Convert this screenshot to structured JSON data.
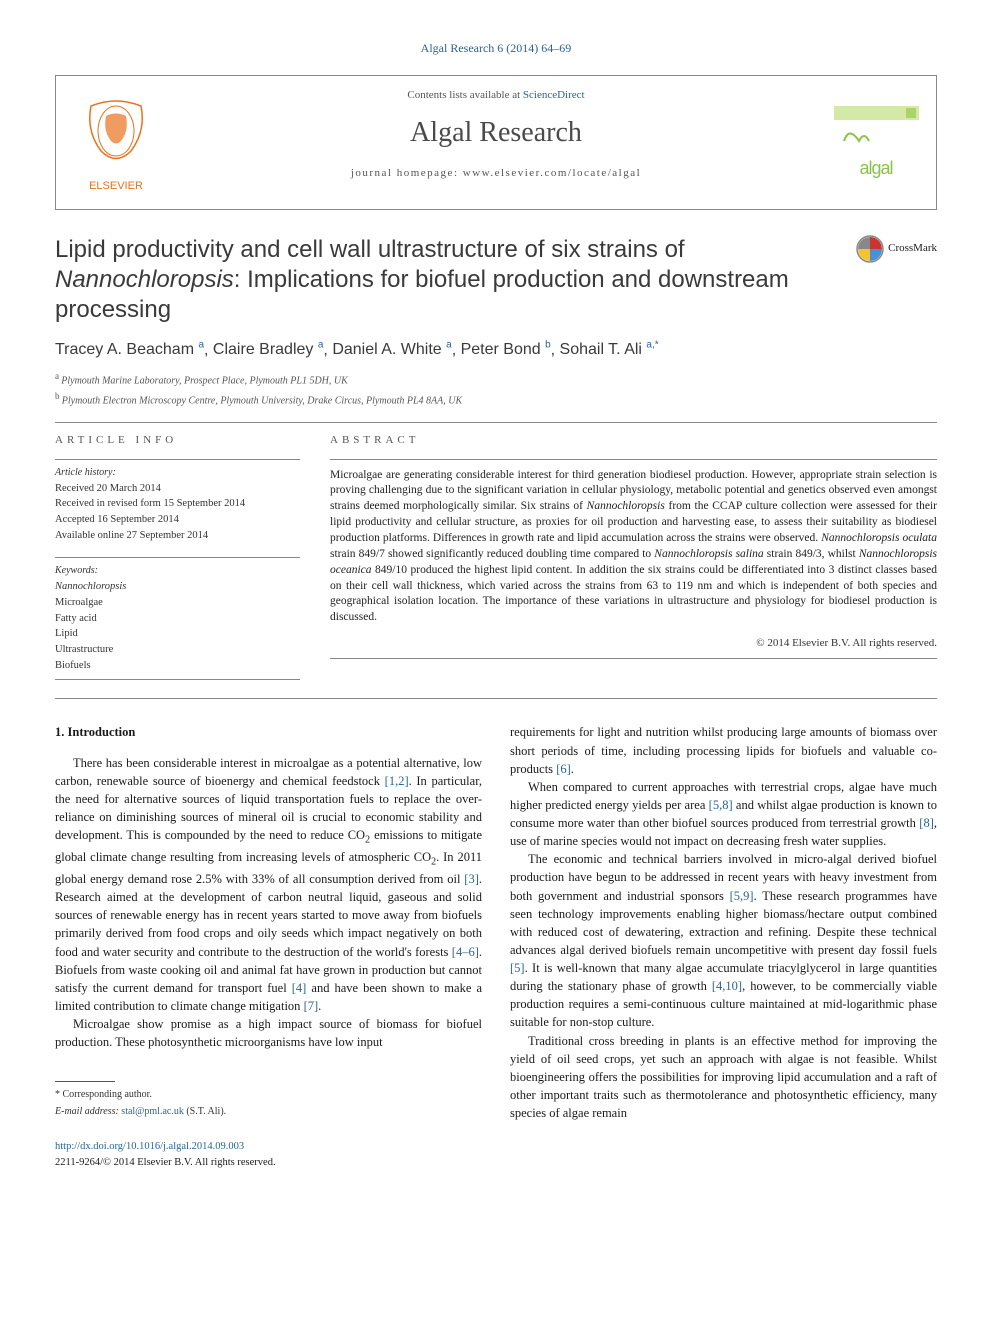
{
  "top_link": "Algal Research 6 (2014) 64–69",
  "header": {
    "contents_line_prefix": "Contents lists available at ",
    "contents_link": "ScienceDirect",
    "journal_name": "Algal Research",
    "homepage_prefix": "journal homepage: ",
    "homepage_url": "www.elsevier.com/locate/algal",
    "algal_brand": "algal"
  },
  "crossmark_label": "CrossMark",
  "title_pre": "Lipid productivity and cell wall ultrastructure of six strains of ",
  "title_em": "Nannochloropsis",
  "title_post": ": Implications for biofuel production and downstream processing",
  "authors": [
    {
      "name": "Tracey A. Beacham",
      "sup": "a"
    },
    {
      "name": "Claire Bradley",
      "sup": "a"
    },
    {
      "name": "Daniel A. White",
      "sup": "a"
    },
    {
      "name": "Peter Bond",
      "sup": "b"
    },
    {
      "name": "Sohail T. Ali",
      "sup": "a,*"
    }
  ],
  "affiliations": [
    {
      "sup": "a",
      "text": "Plymouth Marine Laboratory, Prospect Place, Plymouth PL1 5DH, UK"
    },
    {
      "sup": "b",
      "text": "Plymouth Electron Microscopy Centre, Plymouth University, Drake Circus, Plymouth PL4 8AA, UK"
    }
  ],
  "article_info": {
    "heading": "ARTICLE INFO",
    "history_label": "Article history:",
    "history": [
      "Received 20 March 2014",
      "Received in revised form 15 September 2014",
      "Accepted 16 September 2014",
      "Available online 27 September 2014"
    ],
    "keywords_label": "Keywords:",
    "keywords": [
      "Nannochloropsis",
      "Microalgae",
      "Fatty acid",
      "Lipid",
      "Ultrastructure",
      "Biofuels"
    ]
  },
  "abstract": {
    "heading": "ABSTRACT",
    "text_parts": [
      {
        "t": "Microalgae are generating considerable interest for third generation biodiesel production. However, appropriate strain selection is proving challenging due to the significant variation in cellular physiology, metabolic potential and genetics observed even amongst strains deemed morphologically similar. Six strains of "
      },
      {
        "em": "Nannochloropsis"
      },
      {
        "t": " from the CCAP culture collection were assessed for their lipid productivity and cellular structure, as proxies for oil production and harvesting ease, to assess their suitability as biodiesel production platforms. Differences in growth rate and lipid accumulation across the strains were observed. "
      },
      {
        "em": "Nannochloropsis oculata"
      },
      {
        "t": " strain 849/7 showed significantly reduced doubling time compared to "
      },
      {
        "em": "Nannochloropsis salina"
      },
      {
        "t": " strain 849/3, whilst "
      },
      {
        "em": "Nannochloropsis oceanica"
      },
      {
        "t": " 849/10 produced the highest lipid content. In addition the six strains could be differentiated into 3 distinct classes based on their cell wall thickness, which varied across the strains from 63 to 119 nm and which is independent of both species and geographical isolation location. The importance of these variations in ultrastructure and physiology for biodiesel production is discussed."
      }
    ],
    "copyright": "© 2014 Elsevier B.V. All rights reserved."
  },
  "section_heading": "1. Introduction",
  "col1": {
    "p1": {
      "pre": "There has been considerable interest in microalgae as a potential alternative, low carbon, renewable source of bioenergy and chemical feedstock ",
      "r1": "[1,2]",
      "mid1": ". In particular, the need for alternative sources of liquid transportation fuels to replace the over-reliance on diminishing sources of mineral oil is crucial to economic stability and development. This is compounded by the need to reduce CO",
      "sub1": "2",
      "mid2": " emissions to mitigate global climate change resulting from increasing levels of atmospheric CO",
      "sub2": "2",
      "mid3": ". In 2011 global energy demand rose 2.5% with 33% of all consumption derived from oil ",
      "r2": "[3]",
      "mid4": ". Research aimed at the development of carbon neutral liquid, gaseous and solid sources of renewable energy has in recent years started to move away from biofuels primarily derived from food crops and oily seeds which impact negatively on both food and water security and contribute to the destruction of the world's forests ",
      "r3": "[4–6]",
      "mid5": ". Biofuels from waste cooking oil and animal fat have grown in production but cannot satisfy the current demand for transport fuel ",
      "r4": "[4]",
      "mid6": " and have been shown to make a limited contribution to climate change mitigation ",
      "r5": "[7]",
      "end": "."
    },
    "p2": "Microalgae show promise as a high impact source of biomass for biofuel production. These photosynthetic microorganisms have low input"
  },
  "col2": {
    "p1": {
      "pre": "requirements for light and nutrition whilst producing large amounts of biomass over short periods of time, including processing lipids for biofuels and valuable co-products ",
      "r1": "[6]",
      "end": "."
    },
    "p2": {
      "pre": "When compared to current approaches with terrestrial crops, algae have much higher predicted energy yields per area ",
      "r1": "[5,8]",
      "mid1": " and whilst algae production is known to consume more water than other biofuel sources produced from terrestrial growth ",
      "r2": "[8]",
      "end": ", use of marine species would not impact on decreasing fresh water supplies."
    },
    "p3": {
      "pre": "The economic and technical barriers involved in micro-algal derived biofuel production have begun to be addressed in recent years with heavy investment from both government and industrial sponsors ",
      "r1": "[5,9]",
      "mid1": ". These research programmes have seen technology improvements enabling higher biomass/hectare output combined with reduced cost of dewatering, extraction and refining. Despite these technical advances algal derived biofuels remain uncompetitive with present day fossil fuels ",
      "r2": "[5]",
      "mid2": ". It is well-known that many algae accumulate triacylglycerol in large quantities during the stationary phase of growth ",
      "r3": "[4,10]",
      "end": ", however, to be commercially viable production requires a semi-continuous culture maintained at mid-logarithmic phase suitable for non-stop culture."
    },
    "p4": "Traditional cross breeding in plants is an effective method for improving the yield of oil seed crops, yet such an approach with algae is not feasible. Whilst bioengineering offers the possibilities for improving lipid accumulation and a raft of other important traits such as thermotolerance and photosynthetic efficiency, many species of algae remain"
  },
  "footnotes": {
    "corr": "* Corresponding author.",
    "email_label": "E-mail address: ",
    "email": "stal@pml.ac.uk",
    "email_person": " (S.T. Ali)."
  },
  "bottom": {
    "doi": "http://dx.doi.org/10.1016/j.algal.2014.09.003",
    "issn": "2211-9264/© 2014 Elsevier B.V. All rights reserved."
  },
  "colors": {
    "link": "#2a6496",
    "elsevier_orange": "#e9711c",
    "algal_green": "#8bc34a",
    "crossmark_red": "#cc3333",
    "crossmark_yellow": "#f4c430",
    "crossmark_blue": "#4a90d9",
    "crossmark_gray": "#888888"
  }
}
